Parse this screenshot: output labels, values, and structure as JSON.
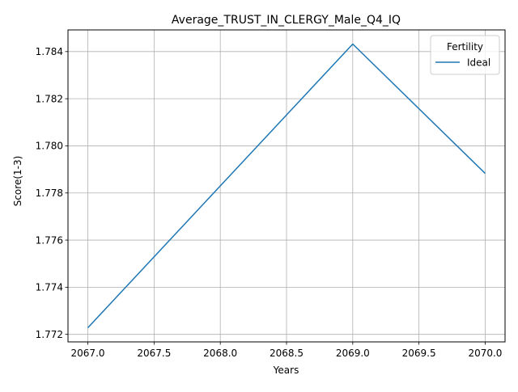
{
  "chart_data": {
    "type": "line",
    "title": "Average_TRUST_IN_CLERGY_Male_Q4_IQ",
    "xlabel": "Years",
    "ylabel": "Score(1-3)",
    "legend_title": "Fertility",
    "legend_position": "top-right",
    "grid": true,
    "xlim": [
      2066.85,
      2070.15
    ],
    "ylim": [
      1.77168,
      1.78492
    ],
    "x_ticks": [
      2067.0,
      2067.5,
      2068.0,
      2068.5,
      2069.0,
      2069.5,
      2070.0
    ],
    "x_tick_labels": [
      "2067.0",
      "2067.5",
      "2068.0",
      "2068.5",
      "2069.0",
      "2069.5",
      "2070.0"
    ],
    "y_ticks": [
      1.772,
      1.774,
      1.776,
      1.778,
      1.78,
      1.782,
      1.784
    ],
    "y_tick_labels": [
      "1.772",
      "1.774",
      "1.776",
      "1.778",
      "1.780",
      "1.782",
      "1.784"
    ],
    "series": [
      {
        "name": "Ideal",
        "color": "#1f77b4",
        "x": [
          2067,
          2068,
          2069,
          2070
        ],
        "y": [
          1.77228,
          1.7783,
          1.78432,
          1.77883
        ]
      }
    ]
  }
}
